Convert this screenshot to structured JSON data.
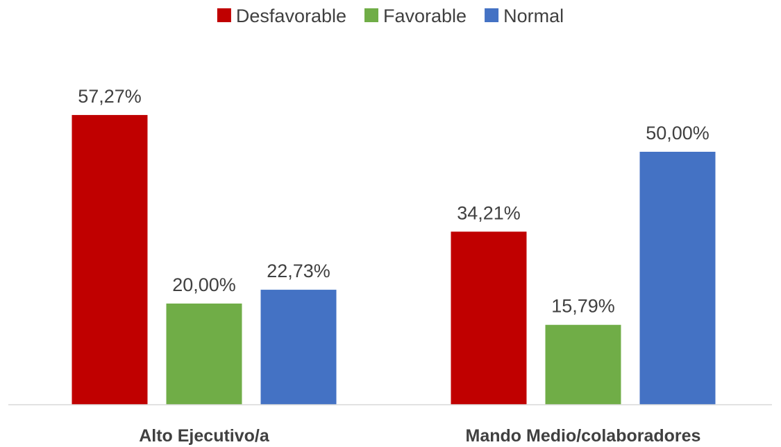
{
  "chart_data": {
    "type": "bar",
    "categories": [
      "Alto Ejecutivo/a",
      "Mando Medio/colaboradores"
    ],
    "series": [
      {
        "name": "Desfavorable",
        "color": "#C00000",
        "values": [
          57.27,
          34.21
        ],
        "labels": [
          "57,27%",
          "34,21%"
        ]
      },
      {
        "name": "Favorable",
        "color": "#70AD47",
        "values": [
          20.0,
          15.79
        ],
        "labels": [
          "20,00%",
          "15,79%"
        ]
      },
      {
        "name": "Normal",
        "color": "#4472C4",
        "values": [
          22.73,
          50.0
        ],
        "labels": [
          "22,73%",
          "50,00%"
        ]
      }
    ],
    "ylim": [
      0,
      70
    ],
    "grid": false,
    "legend": "top-center"
  }
}
